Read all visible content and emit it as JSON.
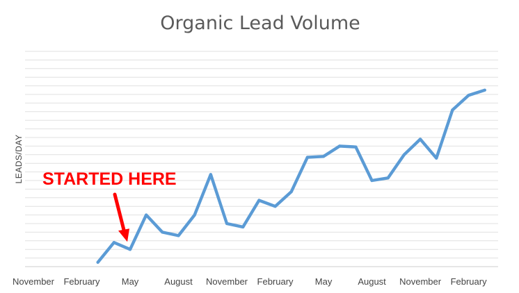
{
  "chart_data": {
    "type": "line",
    "title": "Organic Lead Volume",
    "xlabel": "",
    "ylabel": "LEADS/DAY",
    "x_tick_labels": [
      "November",
      "February",
      "May",
      "August",
      "November",
      "February",
      "May",
      "August",
      "November",
      "February"
    ],
    "ylim": [
      0,
      25
    ],
    "grid": true,
    "legend": "none",
    "series": [
      {
        "color": "#5b9bd5",
        "start_index": 4,
        "values": [
          0.5,
          2.8,
          2.0,
          6.0,
          4.0,
          3.6,
          6.0,
          10.7,
          5.0,
          4.6,
          7.7,
          7.0,
          8.7,
          12.7,
          12.8,
          14.0,
          13.9,
          10.0,
          10.3,
          13.0,
          14.8,
          12.6,
          18.2,
          19.9,
          20.5
        ]
      }
    ],
    "annotation": {
      "text": "STARTED HERE",
      "color": "#ff0000",
      "points_to_index": 6
    }
  }
}
